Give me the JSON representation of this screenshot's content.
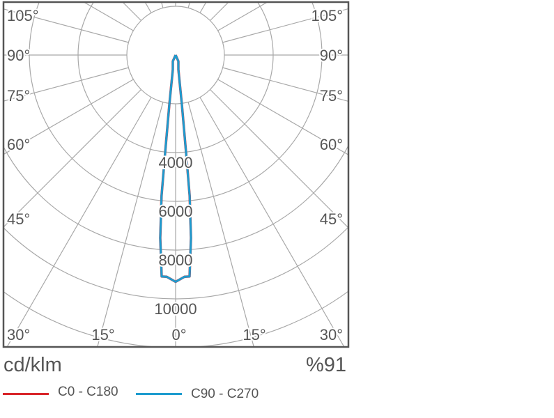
{
  "chart_data": {
    "type": "polar",
    "unit_label": "cd/klm",
    "efficiency_label": "%91",
    "radial_ticks": [
      4000,
      6000,
      8000,
      10000
    ],
    "radial_grid_step": 2000,
    "angle_grid_step_deg": 15,
    "side_angle_labels": [
      "105°",
      "90°",
      "75°",
      "60°",
      "45°",
      "30°"
    ],
    "bottom_angle_labels": [
      "30°",
      "15°",
      "0°",
      "15°",
      "30°"
    ],
    "series": [
      {
        "name": "C0 - C180",
        "color": "#d9262b",
        "points": [
          [
            0,
            9300
          ],
          [
            2.3,
            9100
          ],
          [
            3.6,
            9100
          ],
          [
            4.8,
            7530
          ],
          [
            5.7,
            5800
          ],
          [
            6.1,
            4080
          ],
          [
            7.2,
            2060
          ],
          [
            10.8,
            610
          ],
          [
            24,
            280
          ],
          [
            90,
            0
          ]
        ]
      },
      {
        "name": "C90 - C270",
        "color": "#1e9ccf",
        "points": [
          [
            0,
            9300
          ],
          [
            2.3,
            9100
          ],
          [
            3.6,
            9100
          ],
          [
            4.8,
            7530
          ],
          [
            5.7,
            5800
          ],
          [
            6.1,
            4080
          ],
          [
            7.2,
            2060
          ],
          [
            10.8,
            610
          ],
          [
            24,
            280
          ],
          [
            90,
            0
          ]
        ]
      }
    ],
    "grid": true,
    "legend_position": "bottom"
  }
}
